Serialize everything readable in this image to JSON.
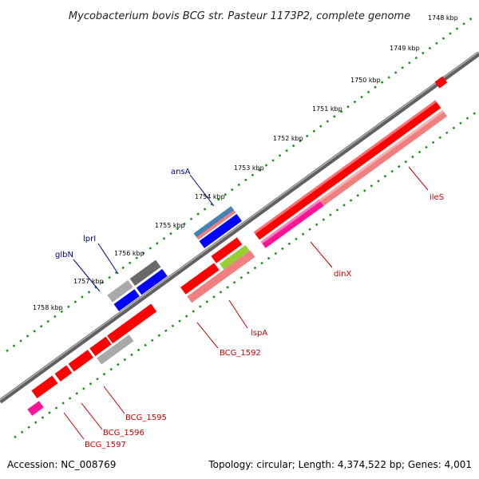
{
  "title": "Mycobacterium bovis BCG str. Pasteur 1173P2, complete genome",
  "footer": {
    "accession": "Accession: NC_008769",
    "summary": "Topology: circular; Length: 4,374,522 bp; Genes: 4,001"
  },
  "ticks": [
    "1748 kbp",
    "1749 kbp",
    "1750 kbp",
    "1751 kbp",
    "1752 kbp",
    "1753 kbp",
    "1754 kbp",
    "1755 kbp",
    "1756 kbp",
    "1757 kbp",
    "1758 kbp"
  ],
  "colors": {
    "backbone": "#808080",
    "scale_dots": "#1a8a1a",
    "upper_label": "#00008b",
    "lower_label": "#cc0000",
    "gene_red": "#ff0000",
    "gene_pink": "#f08080",
    "gene_magenta": "#ff1493",
    "gene_blue": "#0000ff",
    "gene_steelblue": "#4682b4",
    "gene_gray": "#a9a9a9",
    "gene_darkgray": "#696969",
    "gene_green": "#9acd32"
  },
  "labels": {
    "ansA": "ansA",
    "lprI": "lprI",
    "glbN": "glbN",
    "ileS": "ileS",
    "dinX": "dinX",
    "lspA": "lspA",
    "BCG_1592": "BCG_1592",
    "BCG_1595": "BCG_1595",
    "BCG_1596": "BCG_1596",
    "BCG_1597": "BCG_1597"
  }
}
